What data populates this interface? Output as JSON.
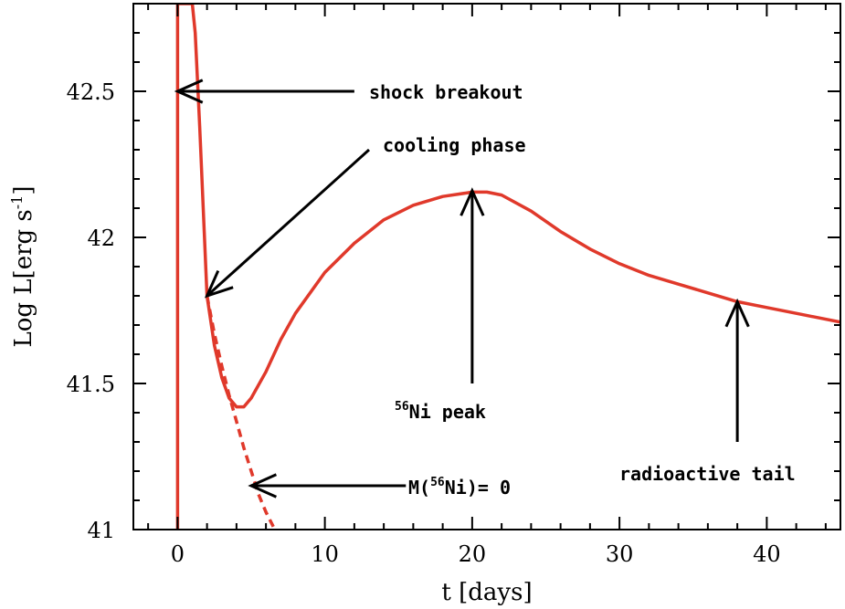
{
  "chart_data": {
    "type": "line",
    "title": "",
    "xlabel": "t [days]",
    "ylabel_base": "Log L[erg s",
    "ylabel_sup": "-1",
    "ylabel_close": "]",
    "xlim": [
      -3,
      45
    ],
    "ylim": [
      41,
      42.8
    ],
    "xticks": [
      0,
      10,
      20,
      30,
      40
    ],
    "xtick_labels": [
      "0",
      "10",
      "20",
      "30",
      "40"
    ],
    "yticks": [
      41,
      41.5,
      42,
      42.5
    ],
    "ytick_labels": [
      "41",
      "41.5",
      "42",
      "42.5"
    ],
    "grid": false,
    "colors": {
      "curve": "#e0392b",
      "axis": "#000000",
      "arrow": "#000000"
    },
    "series": [
      {
        "style": "solid",
        "x": [
          0,
          0,
          0.2,
          0.3,
          0.6,
          1.0,
          1.2,
          1.5,
          2,
          2.5,
          3,
          3.5,
          4,
          4.5,
          5,
          6,
          7,
          8,
          10,
          12,
          14,
          16,
          18,
          20,
          21,
          22,
          24,
          26,
          28,
          30,
          32,
          34,
          36,
          38,
          40,
          42,
          45
        ],
        "y": [
          41.0,
          42.8,
          42.8,
          42.8,
          42.8,
          42.8,
          42.7,
          42.38,
          41.8,
          41.63,
          41.52,
          41.45,
          41.42,
          41.42,
          41.45,
          41.54,
          41.65,
          41.74,
          41.88,
          41.98,
          42.06,
          42.11,
          42.14,
          42.155,
          42.155,
          42.145,
          42.09,
          42.02,
          41.96,
          41.91,
          41.87,
          41.84,
          41.81,
          41.78,
          41.76,
          41.74,
          41.71
        ]
      },
      {
        "style": "dashed",
        "x": [
          2,
          2.5,
          3,
          3.5,
          4,
          4.5,
          5,
          5.5,
          6,
          6.5
        ],
        "y": [
          41.8,
          41.67,
          41.56,
          41.46,
          41.37,
          41.28,
          41.2,
          41.12,
          41.06,
          41.01
        ]
      }
    ],
    "annotations": [
      {
        "text": "shock breakout",
        "arrow_from": [
          12,
          42.5
        ],
        "arrow_to": [
          0,
          42.5
        ]
      },
      {
        "text": "cooling phase",
        "arrow_from": [
          13,
          42.3
        ],
        "arrow_to": [
          2,
          41.8
        ]
      },
      {
        "text_pre": "",
        "text_sup": "56",
        "text_post": "Ni peak",
        "arrow_from": [
          20,
          41.5
        ],
        "arrow_to": [
          20,
          42.16
        ]
      },
      {
        "text": "radioactive tail",
        "arrow_from": [
          38,
          41.3
        ],
        "arrow_to": [
          38,
          41.78
        ]
      },
      {
        "text_pre": "M(",
        "text_sup": "56",
        "text_post": "Ni)= 0",
        "arrow_from": [
          15.5,
          41.15
        ],
        "arrow_to": [
          5,
          41.15
        ]
      }
    ]
  }
}
